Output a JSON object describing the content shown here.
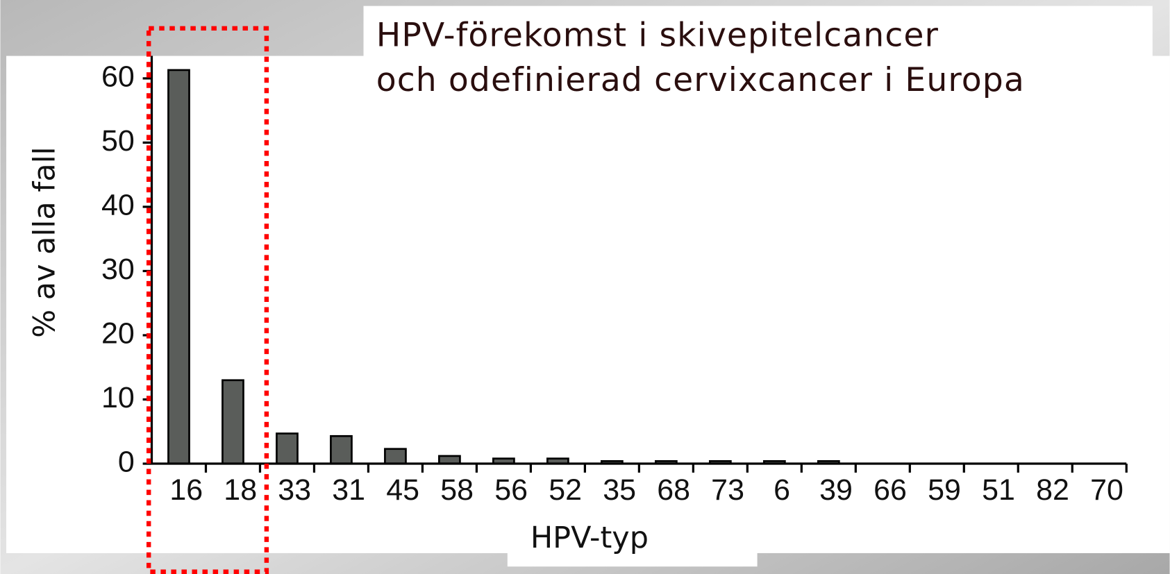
{
  "chart_data": {
    "type": "bar",
    "title": [
      "HPV-förekomst i skivepitelcancer",
      "och odefinierad cervixcancer i Europa"
    ],
    "x_label": "HPV-typ",
    "y_label": "% av alla fall",
    "categories": [
      "16",
      "18",
      "33",
      "31",
      "45",
      "58",
      "56",
      "52",
      "35",
      "68",
      "73",
      "6",
      "39",
      "66",
      "59",
      "51",
      "82",
      "70"
    ],
    "values": [
      61.3,
      13,
      4.7,
      4.3,
      2.3,
      1.2,
      0.8,
      0.8,
      0.4,
      0.4,
      0.4,
      0.4,
      0.4,
      0,
      0,
      0,
      0,
      0
    ],
    "color": "#5a5d5a",
    "ylim": [
      0,
      63.5
    ],
    "yticks": [
      0,
      10,
      20,
      30,
      40,
      50,
      60
    ],
    "grid": false
  }
}
